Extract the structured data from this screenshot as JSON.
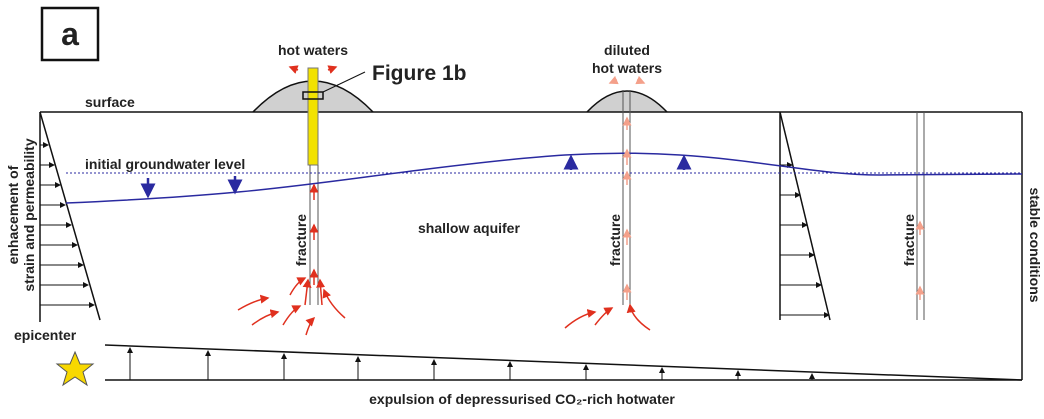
{
  "panel_label": "a",
  "labels": {
    "hot_waters": "hot waters",
    "figure_ref": "Figure 1b",
    "diluted": [
      "diluted",
      "hot waters"
    ],
    "surface": "surface",
    "groundwater": "initial groundwater level",
    "enhancement": [
      "enhacement of",
      "strain and permeability"
    ],
    "aquifer": "shallow aquifer",
    "fractures": [
      "fracture",
      "fracture",
      "fracture"
    ],
    "stable": "stable conditions",
    "epicenter": "epicenter",
    "expulsion": "expulsion of depressurised CO₂-rich hotwater"
  }
}
